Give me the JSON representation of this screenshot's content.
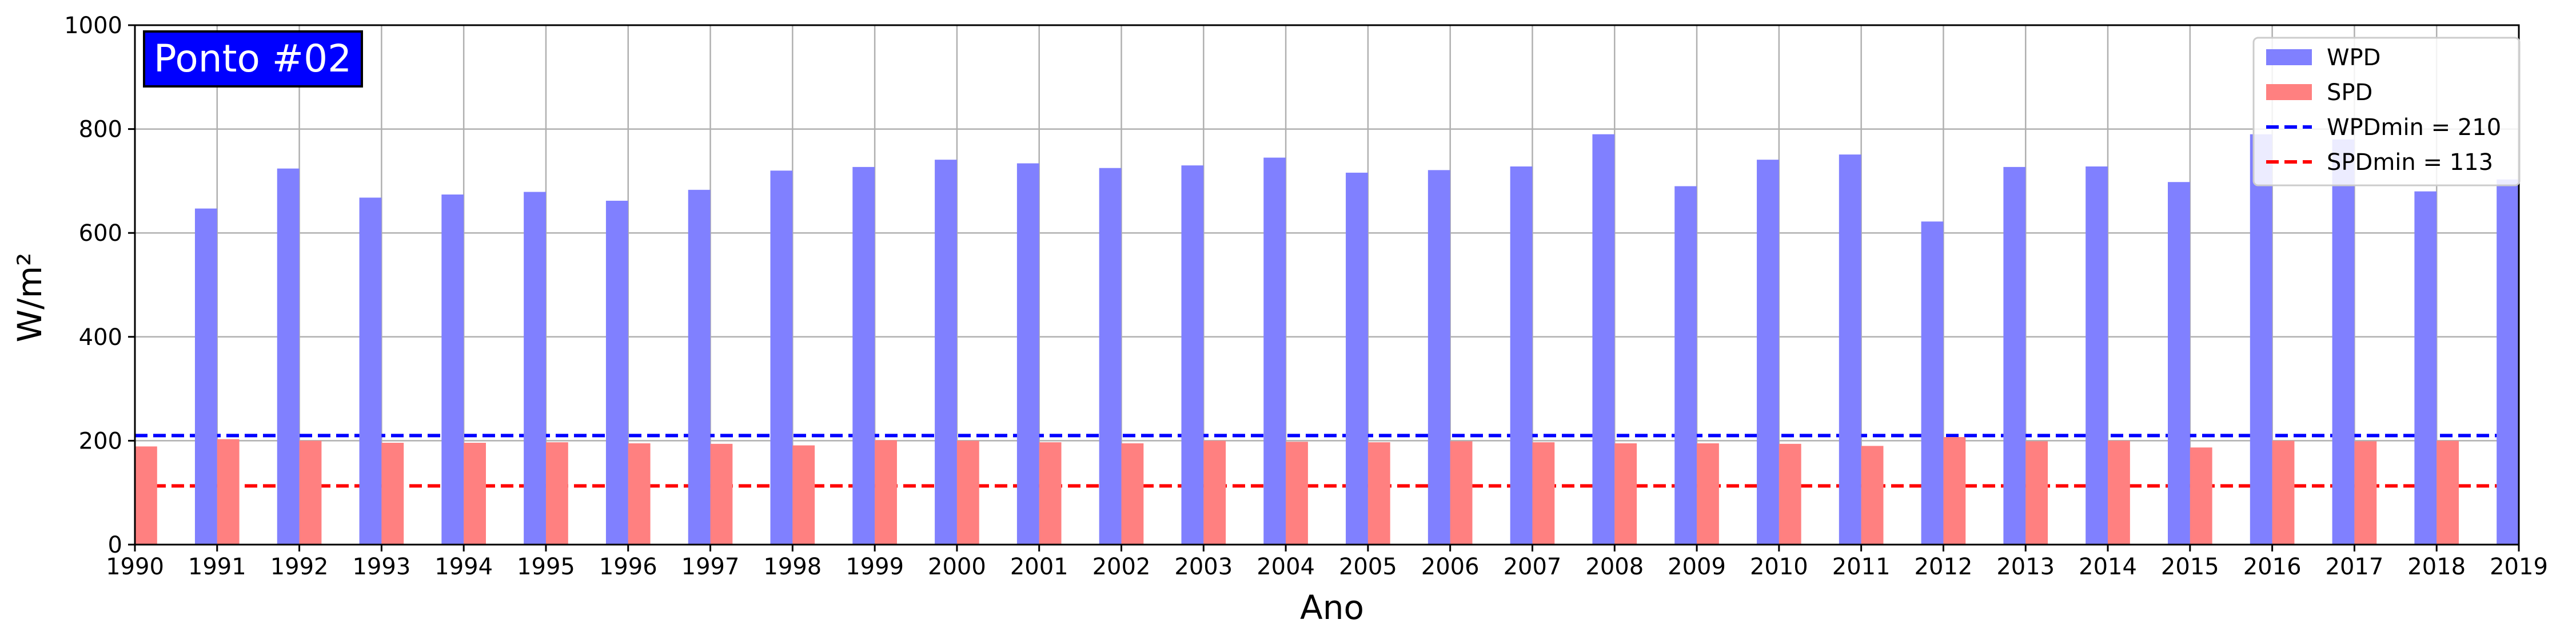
{
  "chart_data": {
    "type": "bar",
    "title": "Ponto #02",
    "xlabel": "Ano",
    "ylabel": "W/m²",
    "xlim": [
      1990,
      2019
    ],
    "ylim": [
      0,
      1000
    ],
    "yticks": [
      0,
      200,
      400,
      600,
      800,
      1000
    ],
    "grid": true,
    "legend_position": "top-right",
    "categories": [
      1990,
      1991,
      1992,
      1993,
      1994,
      1995,
      1996,
      1997,
      1998,
      1999,
      2000,
      2001,
      2002,
      2003,
      2004,
      2005,
      2006,
      2007,
      2008,
      2009,
      2010,
      2011,
      2012,
      2013,
      2014,
      2015,
      2016,
      2017,
      2018,
      2019
    ],
    "series": [
      {
        "name": "WPD",
        "color": "#8080ff",
        "x": [
          1991,
          1992,
          1993,
          1994,
          1995,
          1996,
          1997,
          1998,
          1999,
          2000,
          2001,
          2002,
          2003,
          2004,
          2005,
          2006,
          2007,
          2008,
          2009,
          2010,
          2011,
          2012,
          2013,
          2014,
          2015,
          2016,
          2017,
          2018,
          2019
        ],
        "values": [
          647,
          724,
          668,
          674,
          679,
          662,
          683,
          720,
          727,
          741,
          734,
          725,
          730,
          745,
          716,
          721,
          728,
          790,
          690,
          741,
          751,
          622,
          727,
          728,
          698,
          790,
          780,
          680,
          703
        ]
      },
      {
        "name": "SPD",
        "color": "#ff8080",
        "x": [
          1990,
          1991,
          1992,
          1993,
          1994,
          1995,
          1996,
          1997,
          1998,
          1999,
          2000,
          2001,
          2002,
          2003,
          2004,
          2005,
          2006,
          2007,
          2008,
          2009,
          2010,
          2011,
          2012,
          2013,
          2014,
          2015,
          2016,
          2017,
          2018
        ],
        "values": [
          189,
          203,
          200,
          196,
          196,
          197,
          195,
          194,
          191,
          201,
          200,
          197,
          195,
          200,
          198,
          197,
          199,
          197,
          195,
          195,
          194,
          190,
          207,
          199,
          200,
          187,
          200,
          199,
          200
        ]
      }
    ],
    "reference_lines": [
      {
        "name": "WPDmin = 210",
        "value": 210,
        "color": "#0000ff",
        "style": "dashed"
      },
      {
        "name": "SPDmin = 113",
        "value": 113,
        "color": "#ff0000",
        "style": "dashed"
      }
    ]
  }
}
